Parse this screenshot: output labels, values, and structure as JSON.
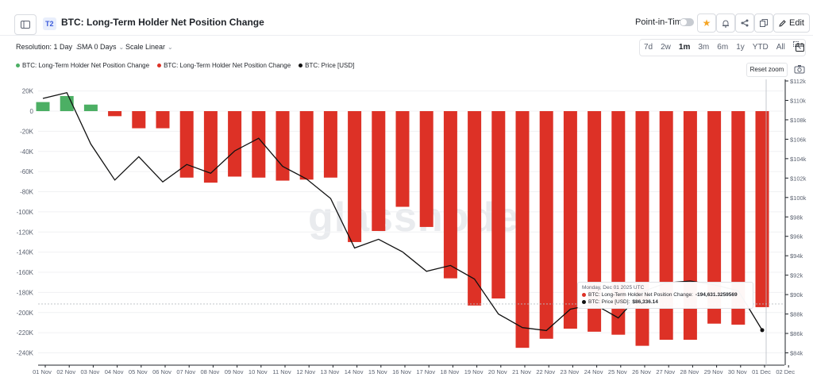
{
  "header": {
    "tier_badge": "T2",
    "title": "BTC: Long-Term Holder Net Position Change",
    "point_in_time_label": "Point-in-Time",
    "edit_label": "Edit"
  },
  "toolbar": {
    "resolution": "Resolution: 1 Day",
    "sma": "SMA 0 Days",
    "scale": "Scale Linear",
    "ranges": [
      "7d",
      "2w",
      "1m",
      "3m",
      "6m",
      "1y",
      "YTD",
      "All"
    ],
    "active_range": "1m",
    "reset_zoom": "Reset zoom"
  },
  "watermark": "glassnode",
  "colors": {
    "positive": "#4caf64",
    "negative": "#dd3126",
    "price_line": "#111111",
    "accent_star": "#f5a524"
  },
  "icons": {
    "sidebar": "sidebar-toggle-icon",
    "star": "star-icon",
    "bell": "bell-icon",
    "share": "share-icon",
    "copy": "copy-icon",
    "edit": "pencil-icon",
    "calendar": "calendar-icon",
    "zoom": "zoom-icon",
    "camera": "camera-icon"
  },
  "tooltip": {
    "date": "Monday, Dec 01 2025 UTC",
    "line1_label": "BTC: Long-Term Holder Net Position Change:",
    "line1_value": "-194,631.3259569",
    "line2_label": "BTC: Price [USD]:",
    "line2_value": "$86,336.14"
  },
  "chart_data": {
    "type": "bar",
    "categories": [
      "01 Nov",
      "02 Nov",
      "03 Nov",
      "04 Nov",
      "05 Nov",
      "06 Nov",
      "07 Nov",
      "08 Nov",
      "09 Nov",
      "10 Nov",
      "11 Nov",
      "12 Nov",
      "13 Nov",
      "14 Nov",
      "15 Nov",
      "16 Nov",
      "17 Nov",
      "18 Nov",
      "19 Nov",
      "20 Nov",
      "21 Nov",
      "22 Nov",
      "23 Nov",
      "24 Nov",
      "25 Nov",
      "26 Nov",
      "27 Nov",
      "28 Nov",
      "29 Nov",
      "30 Nov",
      "01 Dec",
      "02 Dec"
    ],
    "series": [
      {
        "name": "BTC: Long-Term Holder Net Position Change",
        "axis": "left",
        "values": [
          9000,
          15000,
          6500,
          -5000,
          -17000,
          -17000,
          -66000,
          -71000,
          -65000,
          -66000,
          -69000,
          -68000,
          -66000,
          -130000,
          -119000,
          -95000,
          -115000,
          -166000,
          -193000,
          -186000,
          -235000,
          -226000,
          -216000,
          -219000,
          -222000,
          -233000,
          -227000,
          -227000,
          -211000,
          -212000,
          -194631.3259569,
          null
        ]
      },
      {
        "name": "BTC: Price [USD]",
        "axis": "right",
        "type": "line",
        "values": [
          110200,
          110800,
          105500,
          101800,
          104200,
          101600,
          103400,
          102500,
          104800,
          106100,
          103200,
          101900,
          99900,
          94800,
          95700,
          94400,
          92400,
          93000,
          91600,
          88000,
          86600,
          86300,
          88500,
          89000,
          87600,
          90300,
          91200,
          91400,
          91000,
          90400,
          86336.14,
          null
        ]
      }
    ],
    "y_left_ticks": [
      "20K",
      "0",
      "-20K",
      "-40K",
      "-60K",
      "-80K",
      "-100K",
      "-120K",
      "-140K",
      "-160K",
      "-180K",
      "-200K",
      "-220K",
      "-240K"
    ],
    "y_right_ticks": [
      "$112k",
      "$110k",
      "$108k",
      "$106k",
      "$104k",
      "$102k",
      "$100k",
      "$98k",
      "$96k",
      "$94k",
      "$92k",
      "$90k",
      "$88k",
      "$86k",
      "$84k"
    ],
    "ylim_left": [
      -250000,
      20000
    ],
    "ylim_right": [
      83500,
      112000
    ],
    "grid": true,
    "legend_position": "top-left"
  }
}
